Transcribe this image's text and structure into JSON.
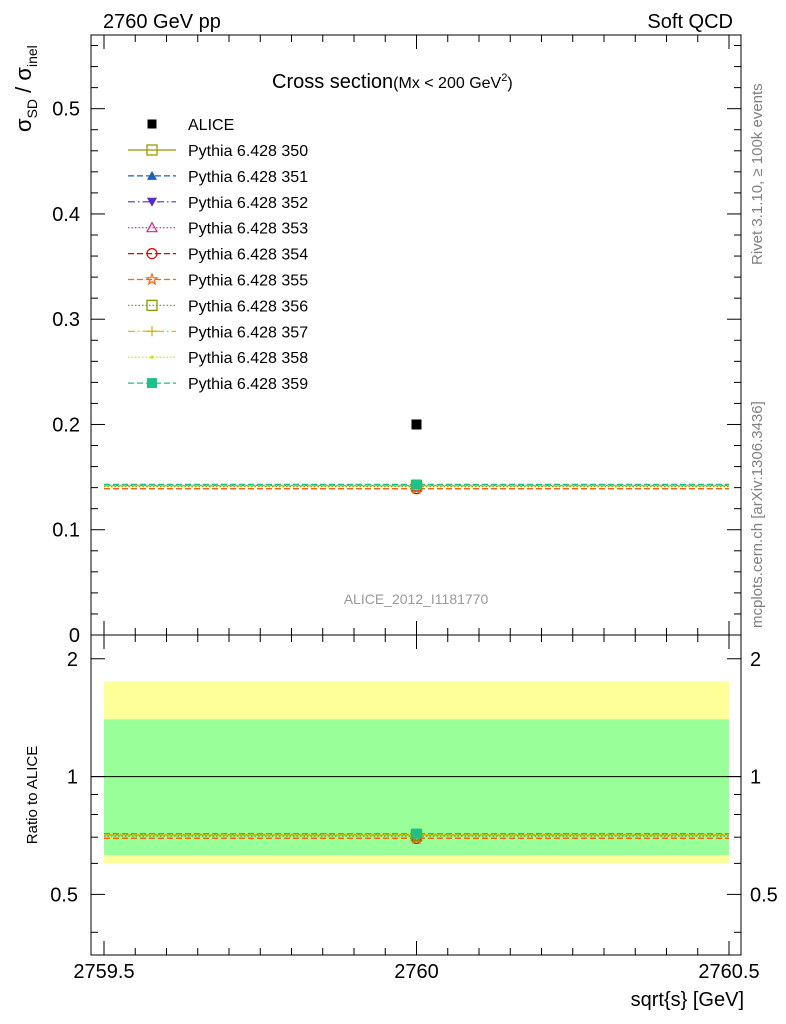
{
  "header": {
    "left": "2760 GeV pp",
    "right": "Soft QCD"
  },
  "side_labels": {
    "rivet_prefix": "Rivet 3.1.10, ",
    "rivet_ge": "≥",
    "rivet_suffix": " 100k events",
    "mcplots": "mcplots.cern.ch [arXiv:1306.3436]"
  },
  "chart_data": [
    {
      "type": "scatter",
      "title_main": "Cross section",
      "title_sub_pre": "(Mx < 200 GeV",
      "title_sub_sup": "2",
      "title_sub_post": ")",
      "ylabel": {
        "sym1": "σ",
        "sub1": "SD",
        "sep": " / ",
        "sym2": "σ",
        "sub2": "inel"
      },
      "analysis_label": "ALICE_2012_I1181770",
      "xlim": [
        2759.5,
        2760.5
      ],
      "ylim": [
        0,
        0.57
      ],
      "yticks": [
        {
          "v": 0,
          "label": "0"
        },
        {
          "v": 0.1,
          "label": "0.1"
        },
        {
          "v": 0.2,
          "label": "0.2"
        },
        {
          "v": 0.3,
          "label": "0.3"
        },
        {
          "v": 0.4,
          "label": "0.4"
        },
        {
          "v": 0.5,
          "label": "0.5"
        }
      ],
      "data": {
        "name": "ALICE",
        "x": 2760,
        "y": 0.2
      },
      "mc": [
        {
          "name": "Pythia 6.428 350",
          "value": 0.142,
          "color": "#999900",
          "marker": "square-open",
          "dash": "solid"
        },
        {
          "name": "Pythia 6.428 351",
          "value": 0.143,
          "color": "#1f5fbf",
          "marker": "triangle-up",
          "dash": "dashed"
        },
        {
          "name": "Pythia 6.428 352",
          "value": 0.142,
          "color": "#5b2bbf",
          "marker": "triangle-down",
          "dash": "dashdot"
        },
        {
          "name": "Pythia 6.428 353",
          "value": 0.141,
          "color": "#cc2a8a",
          "marker": "triangle-up-open",
          "dash": "dotted"
        },
        {
          "name": "Pythia 6.428 354",
          "value": 0.139,
          "color": "#e00000",
          "marker": "circle-open",
          "dash": "dashed"
        },
        {
          "name": "Pythia 6.428 355",
          "value": 0.139,
          "color": "#ff6600",
          "marker": "star-open",
          "dash": "dashed"
        },
        {
          "name": "Pythia 6.428 356",
          "value": 0.141,
          "color": "#7f9f00",
          "marker": "square-open",
          "dash": "dotted"
        },
        {
          "name": "Pythia 6.428 357",
          "value": 0.142,
          "color": "#d4b800",
          "marker": "cross",
          "dash": "dashdot"
        },
        {
          "name": "Pythia 6.428 358",
          "value": 0.142,
          "color": "#c8e600",
          "marker": "dot",
          "dash": "dotted"
        },
        {
          "name": "Pythia 6.428 359",
          "value": 0.143,
          "color": "#1cc28a",
          "marker": "square",
          "dash": "dashed"
        }
      ]
    },
    {
      "type": "scatter",
      "ylabel": "Ratio to ALICE",
      "xlabel": "sqrt{s} [GeV]",
      "log_y": true,
      "ylim": [
        0.35,
        2.3
      ],
      "yticks": [
        {
          "v": 0.5,
          "label": "0.5"
        },
        {
          "v": 1,
          "label": "1"
        },
        {
          "v": 2,
          "label": "2"
        }
      ],
      "xticks": [
        {
          "v": 2759.5,
          "label": "2759.5"
        },
        {
          "v": 2760,
          "label": "2760"
        },
        {
          "v": 2760.5,
          "label": "2760.5"
        }
      ],
      "band_outer": [
        0.6,
        1.75
      ],
      "band_inner": [
        0.63,
        1.4
      ],
      "band_outer_color": "#ffff99",
      "band_inner_color": "#99ff99",
      "mc_ratio": [
        0.71,
        0.715,
        0.71,
        0.705,
        0.695,
        0.695,
        0.705,
        0.71,
        0.71,
        0.715
      ]
    }
  ]
}
